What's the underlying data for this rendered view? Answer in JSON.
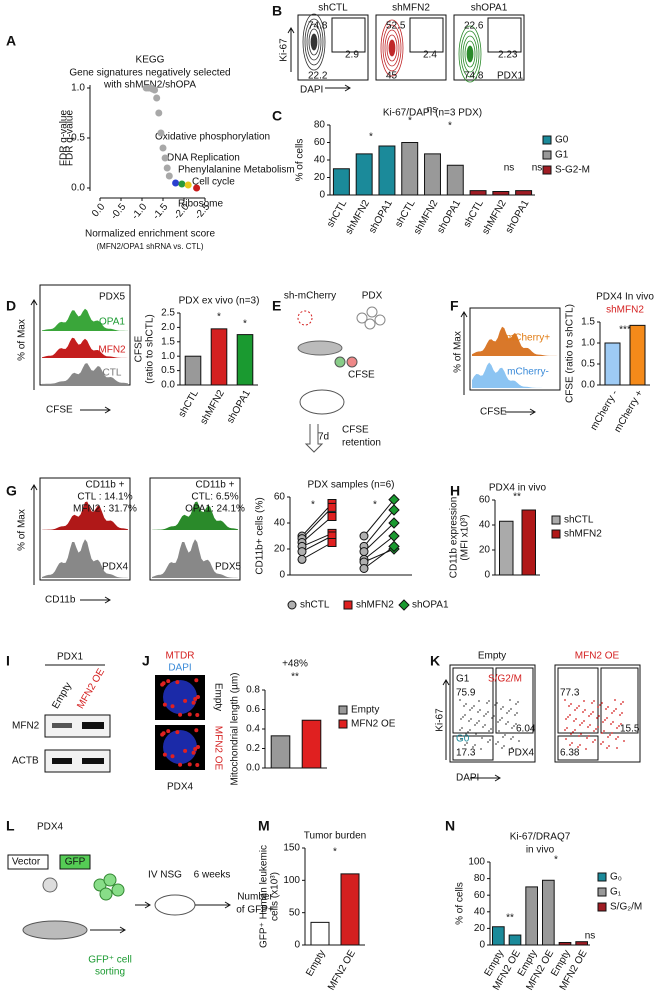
{
  "A": {
    "letter": "A",
    "texts": [
      "KEGG",
      "Gene signatures negatively selected",
      "with shMFN2/shOPA",
      "Oxidative phosphorylation",
      "DNA Replication",
      "Phenylalanine Metabolism",
      "Cell cycle",
      "Ribosome",
      "Normalized enrichment score",
      "(MFN2/OPA1 shRNA vs. CTL)"
    ],
    "chart": {
      "type": "scatter",
      "ylabel": "FDR q-value",
      "xlim": [
        0,
        -2.5
      ],
      "ylim": [
        0,
        1
      ],
      "xticks": [
        {
          "value": 0,
          "label": "0.0"
        },
        {
          "value": -0.5,
          "label": "-0.5"
        },
        {
          "value": -1,
          "label": "-1.0"
        },
        {
          "value": -1.5,
          "label": "-1.5"
        },
        {
          "value": -2,
          "label": "-2.0"
        },
        {
          "value": -2.5,
          "label": "-2.5"
        }
      ],
      "yticks": [
        {
          "value": 0,
          "label": "0.0"
        },
        {
          "value": 0.5,
          "label": "0.5"
        },
        {
          "value": 1,
          "label": "1.0"
        }
      ],
      "series": [
        {
          "color": "#a8a8a8",
          "x": [
            -1.1,
            -1.15,
            -1.2,
            -1.25,
            -1.3,
            -1.35,
            -1.4,
            -1.45,
            -1.5,
            -1.55,
            -1.6,
            -1.65
          ],
          "y": [
            1.0,
            1.0,
            1.0,
            0.99,
            0.98,
            0.9,
            0.75,
            0.55,
            0.4,
            0.3,
            0.2,
            0.12
          ]
        },
        {
          "color": "#2a3fd0",
          "x": [
            -1.8
          ],
          "y": [
            0.05
          ]
        },
        {
          "color": "#2a9a3a",
          "x": [
            -1.95
          ],
          "y": [
            0.04
          ]
        },
        {
          "color": "#e8c81a",
          "x": [
            -2.1
          ],
          "y": [
            0.03
          ]
        },
        {
          "color": "#c81a1a",
          "x": [
            -2.3
          ],
          "y": [
            0.0
          ]
        }
      ]
    }
  },
  "B": {
    "letter": "B",
    "texts": [
      "shCTL",
      "shMFN2",
      "shOPA1",
      74.8,
      2.9,
      22.2,
      52.5,
      2.4,
      45,
      22.6,
      2.23,
      74.8,
      "Ki-67",
      "DAPI",
      "PDX1"
    ]
  },
  "C": {
    "letter": "C",
    "texts": [
      "*",
      "*",
      "ns",
      "*",
      "ns",
      "ns"
    ],
    "chart": {
      "type": "grouped-bar",
      "title": "Ki-67/DAPI (n=3 PDX)",
      "ylabel": "% of cells",
      "categories": [
        "shCTL",
        "shMFN2",
        "shOPA1"
      ],
      "series": [
        {
          "name": "G0",
          "color": "#1b8a9a",
          "values": [
            30,
            47,
            56
          ]
        },
        {
          "name": "G1",
          "color": "#999999",
          "values": [
            60,
            47,
            34
          ]
        },
        {
          "name": "S-G2-M",
          "color": "#a01c24",
          "values": [
            5,
            4,
            5
          ]
        }
      ],
      "ylim": [
        0,
        80
      ],
      "yticks": [
        0,
        20,
        40,
        60,
        80
      ]
    }
  },
  "D": {
    "letter": "D",
    "texts": [
      "PDX5",
      "OPA1",
      "MFN2",
      "CTL",
      "% of Max",
      "CFSE",
      "*",
      "*"
    ],
    "chart": {
      "type": "bar",
      "title": "PDX ex vivo (n=3)",
      "ylabel": [
        "CFSE",
        "(ratio to shCTL)"
      ],
      "categories": [
        "shCTL",
        "shMFN2",
        "shOPA1"
      ],
      "values": [
        1.0,
        1.95,
        1.75
      ],
      "colors": [
        "#999999",
        "#d42020",
        "#1a9a30"
      ],
      "ylim": [
        0,
        2.5
      ],
      "yticks": [
        {
          "value": 0,
          "label": "0.0"
        },
        {
          "value": 0.5,
          "label": "0.5"
        },
        {
          "value": 1,
          "label": "1.0"
        },
        {
          "value": 1.5,
          "label": "1.5"
        },
        {
          "value": 2,
          "label": "2.0"
        },
        {
          "value": 2.5,
          "label": "2.5"
        }
      ]
    }
  },
  "E": {
    "letter": "E",
    "texts": [
      "sh-mCherry",
      "PDX",
      "CFSE",
      "7d",
      "CFSE",
      "retention"
    ]
  },
  "F": {
    "letter": "F",
    "texts": [
      "mCherry+",
      "mCherry-",
      "% of Max",
      "CFSE",
      "***"
    ],
    "chart": {
      "type": "bar",
      "title": [
        "PDX4 In vivo",
        "shMFN2"
      ],
      "ylabel": "CFSE (ratio to shCTL)",
      "categories": [
        "mCherry -",
        "mCherry +"
      ],
      "values": [
        1.0,
        1.42
      ],
      "colors": [
        "#9ecbf5",
        "#f48a1a"
      ],
      "ylim": [
        0,
        1.5
      ],
      "yticks": [
        {
          "value": 0,
          "label": "0.0"
        },
        {
          "value": 0.5,
          "label": "0.5"
        },
        {
          "value": 1,
          "label": "1.0"
        },
        {
          "value": 1.5,
          "label": "1.5"
        }
      ]
    }
  },
  "G": {
    "letter": "G",
    "texts": [
      "CD11b +",
      "CTL : 14.1%",
      "MFN2 : 31.7%",
      "PDX4",
      "CD11b +",
      "CTL: 6.5%",
      "OPA1: 24.1%",
      "PDX5",
      "% of Max",
      "CD11b",
      "*",
      "*"
    ],
    "chart": {
      "type": "paired-dot",
      "title": "PDX samples (n=6)",
      "ylabel": "CD11b+ cells (%)",
      "legend": [
        {
          "name": "shCTL",
          "color": "#b0b0b0"
        },
        {
          "name": "shMFN2",
          "color": "#e02020"
        },
        {
          "name": "shOPA1",
          "color": "#1a9a30"
        }
      ],
      "pairs": [
        {
          "control": [
            30,
            28,
            25,
            22,
            18,
            12
          ],
          "treated": [
            55,
            52,
            45,
            32,
            30,
            25
          ]
        },
        {
          "control": [
            30,
            22,
            18,
            12,
            10,
            5
          ],
          "treated": [
            58,
            50,
            40,
            30,
            20,
            22
          ]
        }
      ],
      "ylim": [
        0,
        60
      ],
      "yticks": [
        0,
        20,
        40,
        60
      ]
    }
  },
  "H": {
    "letter": "H",
    "texts": [
      "**"
    ],
    "chart": {
      "type": "bar",
      "legend": true,
      "title": "PDX4 in vivo",
      "ylabel": [
        "CD11b expression",
        "(MFI x10³)"
      ],
      "categories": [
        "shCTL",
        "shMFN2"
      ],
      "values": [
        43,
        52
      ],
      "colors": [
        "#aaaaaa",
        "#b01818"
      ],
      "ylim": [
        0,
        60
      ],
      "yticks": [
        0,
        20,
        40,
        60
      ]
    }
  },
  "I": {
    "letter": "I",
    "texts": [
      "PDX1",
      "Empty",
      "MFN2 OE",
      "MFN2",
      "ACTB"
    ]
  },
  "J": {
    "letter": "J",
    "texts": [
      "MTDR",
      "DAPI",
      "Empty",
      "MFN2 OE",
      "PDX4",
      "+48%",
      "**"
    ],
    "chart": {
      "type": "bar",
      "legend": true,
      "ylabel": "Mitochondrial length (µm)",
      "categories": [
        "Empty",
        "MFN2 OE"
      ],
      "values": [
        0.33,
        0.49
      ],
      "colors": [
        "#999999",
        "#e02020"
      ],
      "ylim": [
        0,
        0.8
      ],
      "yticks": [
        {
          "value": 0,
          "label": "0.0"
        },
        {
          "value": 0.2,
          "label": "0.2"
        },
        {
          "value": 0.4,
          "label": "0.4"
        },
        {
          "value": 0.6,
          "label": "0.6"
        },
        {
          "value": 0.8,
          "label": "0.8"
        }
      ]
    }
  },
  "K": {
    "letter": "K",
    "texts": [
      "Empty",
      "MFN2 OE",
      "G1",
      75.9,
      "S/G2/M",
      6.04,
      "G0",
      17.3,
      "PDX4",
      77.3,
      15.5,
      6.38,
      "Ki-67",
      "DAPI"
    ]
  },
  "L": {
    "letter": "L",
    "texts": [
      "PDX4",
      "Vector",
      "GFP",
      "IV NSG",
      "6 weeks",
      "Number",
      "of GFP+",
      "GFP⁺ cell",
      "sorting"
    ]
  },
  "M": {
    "letter": "M",
    "texts": [
      "*"
    ],
    "chart": {
      "type": "bar",
      "title": "Tumor burden",
      "ylabel": [
        "GFP⁺ Human leukemic",
        "cells (x10³)"
      ],
      "categories": [
        "Empty",
        "MFN2 OE"
      ],
      "values": [
        35,
        110
      ],
      "colors": [
        "#ffffff",
        "#d42020"
      ],
      "ylim": [
        0,
        150
      ],
      "yticks": [
        0,
        50,
        100,
        150
      ]
    }
  },
  "N": {
    "letter": "N",
    "texts": [
      "**",
      "*",
      "ns"
    ],
    "chart": {
      "type": "grouped-bar",
      "title": [
        "Ki-67/DRAQ7",
        "in vivo"
      ],
      "ylabel": "% of cells",
      "categories": [
        "Empty",
        "MFN2 OE"
      ],
      "series": [
        {
          "name": "G₀",
          "color": "#1b8a9a",
          "values": [
            22,
            12
          ]
        },
        {
          "name": "G₁",
          "color": "#999999",
          "values": [
            70,
            78
          ]
        },
        {
          "name": "S/G₂/M",
          "color": "#a01c24",
          "values": [
            3,
            4
          ]
        }
      ],
      "ylim": [
        0,
        100
      ],
      "yticks": [
        0,
        20,
        40,
        60,
        80,
        100
      ]
    }
  }
}
